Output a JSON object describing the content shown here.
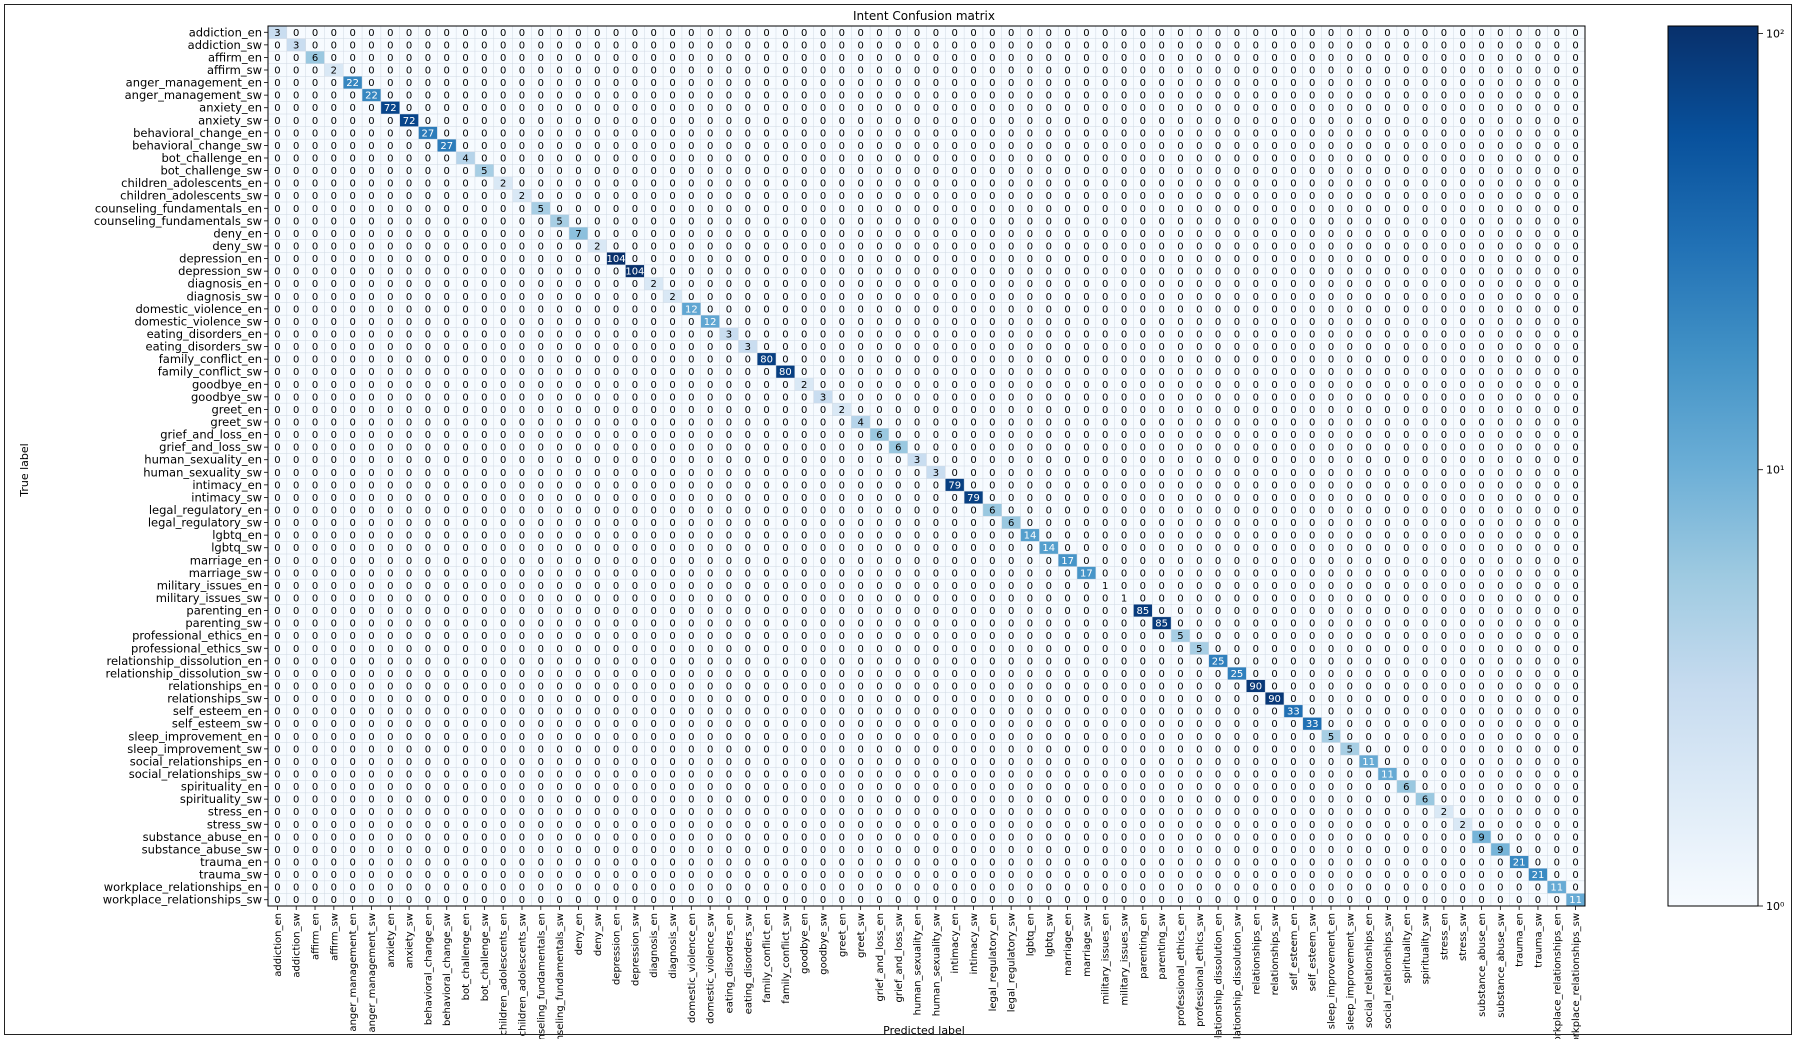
{
  "chart_data": {
    "type": "heatmap",
    "title": "Intent Confusion matrix",
    "xlabel": "Predicted label",
    "ylabel": "True label",
    "labels": [
      "addiction_en",
      "addiction_sw",
      "affirm_en",
      "affirm_sw",
      "anger_management_en",
      "anger_management_sw",
      "anxiety_en",
      "anxiety_sw",
      "behavioral_change_en",
      "behavioral_change_sw",
      "bot_challenge_en",
      "bot_challenge_sw",
      "children_adolescents_en",
      "children_adolescents_sw",
      "counseling_fundamentals_en",
      "counseling_fundamentals_sw",
      "deny_en",
      "deny_sw",
      "depression_en",
      "depression_sw",
      "diagnosis_en",
      "diagnosis_sw",
      "domestic_violence_en",
      "domestic_violence_sw",
      "eating_disorders_en",
      "eating_disorders_sw",
      "family_conflict_en",
      "family_conflict_sw",
      "goodbye_en",
      "goodbye_sw",
      "greet_en",
      "greet_sw",
      "grief_and_loss_en",
      "grief_and_loss_sw",
      "human_sexuality_en",
      "human_sexuality_sw",
      "intimacy_en",
      "intimacy_sw",
      "legal_regulatory_en",
      "legal_regulatory_sw",
      "lgbtq_en",
      "lgbtq_sw",
      "marriage_en",
      "marriage_sw",
      "military_issues_en",
      "military_issues_sw",
      "parenting_en",
      "parenting_sw",
      "professional_ethics_en",
      "professional_ethics_sw",
      "relationship_dissolution_en",
      "relationship_dissolution_sw",
      "relationships_en",
      "relationships_sw",
      "self_esteem_en",
      "self_esteem_sw",
      "sleep_improvement_en",
      "sleep_improvement_sw",
      "social_relationships_en",
      "social_relationships_sw",
      "spirituality_en",
      "spirituality_sw",
      "stress_en",
      "stress_sw",
      "substance_abuse_en",
      "substance_abuse_sw",
      "trauma_en",
      "trauma_sw",
      "workplace_relationships_en",
      "workplace_relationships_sw"
    ],
    "diagonal": [
      3,
      3,
      6,
      2,
      22,
      22,
      72,
      72,
      27,
      27,
      4,
      5,
      2,
      2,
      5,
      5,
      7,
      2,
      104,
      104,
      2,
      2,
      12,
      12,
      3,
      3,
      80,
      80,
      2,
      3,
      2,
      4,
      6,
      6,
      3,
      3,
      79,
      79,
      6,
      6,
      14,
      14,
      17,
      17,
      1,
      1,
      85,
      85,
      5,
      5,
      25,
      25,
      90,
      90,
      33,
      33,
      5,
      5,
      11,
      11,
      6,
      6,
      2,
      2,
      9,
      9,
      21,
      21,
      11,
      11
    ],
    "off_diagonal_value": 0,
    "colormap": "Blues",
    "colorbar": {
      "scale": "log",
      "min": 1,
      "max": 104,
      "ticks": [
        "10⁰",
        "10¹",
        "10²"
      ]
    },
    "grid": true
  },
  "colors": {
    "low": "#f7fbff",
    "mid": "#6baed6",
    "high": "#08306b",
    "text_dark": "#000000",
    "text_light": "#ffffff"
  }
}
